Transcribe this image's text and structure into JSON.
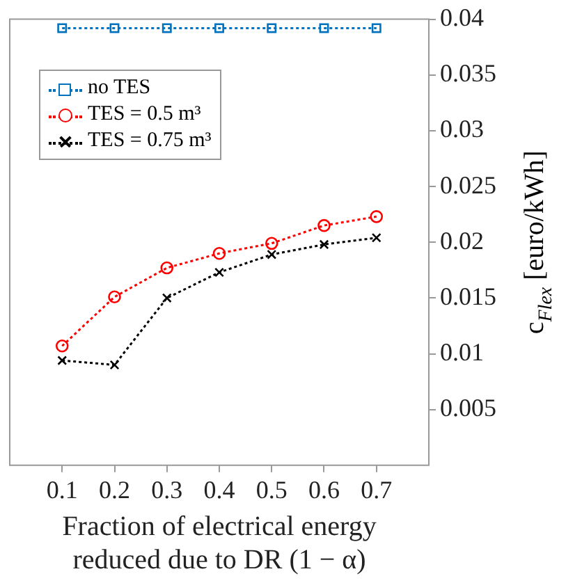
{
  "chart_data": {
    "type": "line",
    "xlabel": "Fraction of electrical energy reduced due to DR (1 − α)",
    "ylabel": "c$_{Flex}$ [euro/kWh]",
    "x": [
      0.1,
      0.2,
      0.3,
      0.4,
      0.5,
      0.6,
      0.7
    ],
    "series": [
      {
        "name": "no TES",
        "color": "#0072bd",
        "marker": "square",
        "values": [
          0.0392,
          0.0392,
          0.0392,
          0.0392,
          0.0392,
          0.0392,
          0.0392
        ]
      },
      {
        "name": "TES = 0.5 m³",
        "color": "#ff0000",
        "marker": "circle",
        "values": [
          0.0107,
          0.0151,
          0.0177,
          0.019,
          0.0199,
          0.0215,
          0.0223
        ]
      },
      {
        "name": "TES = 0.75 m³",
        "color": "#000000",
        "marker": "cross",
        "values": [
          0.0094,
          0.009,
          0.015,
          0.0173,
          0.0189,
          0.0198,
          0.0204
        ]
      }
    ],
    "xlim": [
      0,
      0.8
    ],
    "xticks": [
      0.1,
      0.2,
      0.3,
      0.4,
      0.5,
      0.6,
      0.7
    ],
    "ylim": [
      0,
      0.04
    ],
    "yticks": [
      0.005,
      0.01,
      0.015,
      0.02,
      0.025,
      0.03,
      0.035,
      0.04
    ],
    "grid": false,
    "legend": "top left",
    "line_style": "dotted"
  }
}
